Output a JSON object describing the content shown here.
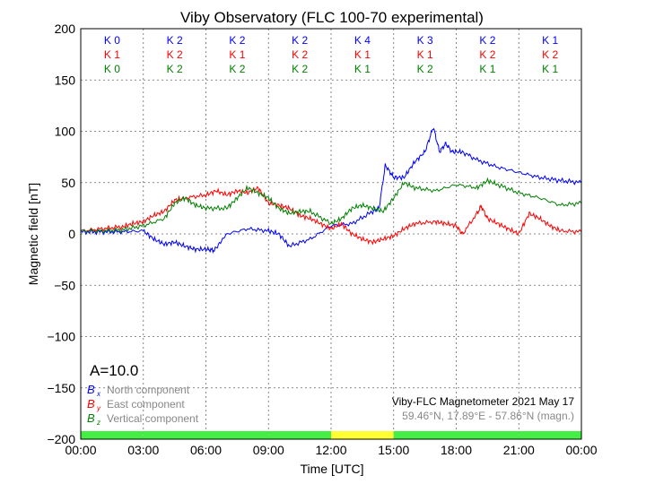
{
  "chart_data": {
    "type": "line",
    "title": "Viby Observatory (FLC 100-70 experimental)",
    "xlabel": "Time [UTC]",
    "ylabel": "Magnetic field [nT]",
    "xlim": [
      0,
      24
    ],
    "ylim": [
      -200,
      200
    ],
    "x_ticks": [
      "00:00",
      "03:00",
      "06:00",
      "09:00",
      "12:00",
      "15:00",
      "18:00",
      "21:00",
      "00:00"
    ],
    "y_ticks": [
      200,
      150,
      100,
      50,
      0,
      -50,
      -100,
      -150,
      -200
    ],
    "grid": true,
    "k_indices": {
      "north": [
        "K 0",
        "K 2",
        "K 2",
        "K 2",
        "K 4",
        "K 3",
        "K 2",
        "K 1"
      ],
      "east": [
        "K 1",
        "K 2",
        "K 1",
        "K 2",
        "K 1",
        "K 1",
        "K 2",
        "K 2"
      ],
      "vertical": [
        "K 0",
        "K 2",
        "K 2",
        "K 2",
        "K 1",
        "K 2",
        "K 1",
        "K 1"
      ]
    },
    "activity_bar": [
      "#44ee44",
      "#44ee44",
      "#44ee44",
      "#44ee44",
      "#ffff33",
      "#44ee44",
      "#44ee44",
      "#44ee44"
    ],
    "a_index": "A=10.0",
    "legend": [
      {
        "symbol": "B",
        "sub": "x",
        "label": "North component",
        "color": "#0000ff"
      },
      {
        "symbol": "B",
        "sub": "y",
        "label": "East component",
        "color": "#ff0000"
      },
      {
        "symbol": "B",
        "sub": "z",
        "label": "Vertical component",
        "color": "#008000"
      }
    ],
    "station": "Viby-FLC Magnetometer 2021 May 17",
    "coords": "59.46°N, 17.89°E - 57.86°N (magn.)",
    "series": [
      {
        "name": "North",
        "color": "#0000ff",
        "x": [
          0,
          1,
          2,
          3,
          3.5,
          4,
          4.5,
          5,
          5.5,
          6,
          6.4,
          7,
          8,
          9,
          9.5,
          10,
          11,
          12,
          13,
          14,
          14.3,
          14.6,
          15,
          15.5,
          16,
          16.5,
          16.9,
          17.2,
          17.5,
          17.8,
          18.3,
          19,
          20,
          21,
          22,
          23,
          24
        ],
        "y": [
          2,
          2,
          2,
          3,
          -5,
          -10,
          -8,
          -12,
          -15,
          -15,
          -16,
          0,
          5,
          3,
          0,
          -12,
          -5,
          8,
          10,
          22,
          25,
          67,
          55,
          55,
          70,
          80,
          104,
          80,
          88,
          80,
          80,
          72,
          65,
          60,
          55,
          52,
          50
        ]
      },
      {
        "name": "East",
        "color": "#ff0000",
        "x": [
          0,
          1,
          2,
          2.5,
          3,
          3.5,
          4,
          4.5,
          5,
          6,
          6.5,
          7,
          7.5,
          8,
          8.5,
          9,
          9.5,
          10,
          10.5,
          11,
          11.5,
          12,
          12.5,
          13,
          13.5,
          14,
          14.5,
          15,
          15.5,
          16,
          17,
          17.5,
          18,
          18.3,
          19,
          19.2,
          19.5,
          20,
          20.5,
          21,
          21.5,
          22,
          22.5,
          23,
          24
        ],
        "y": [
          3,
          5,
          7,
          10,
          12,
          18,
          22,
          33,
          35,
          38,
          42,
          38,
          42,
          40,
          45,
          30,
          28,
          25,
          18,
          15,
          10,
          5,
          10,
          0,
          -5,
          -8,
          -5,
          -2,
          5,
          10,
          12,
          10,
          8,
          0,
          20,
          27,
          15,
          10,
          5,
          0,
          20,
          15,
          8,
          3,
          2
        ]
      },
      {
        "name": "Vertical",
        "color": "#008000",
        "x": [
          0,
          1,
          2,
          3,
          4,
          4.5,
          5,
          5.5,
          6,
          7,
          7.5,
          8,
          8.5,
          9,
          9.5,
          10,
          10.5,
          11,
          12,
          12.5,
          13,
          13.5,
          14,
          14.5,
          15,
          15.5,
          16,
          17,
          18,
          19,
          19.5,
          20,
          21,
          22,
          23,
          24
        ],
        "y": [
          3,
          3,
          4,
          8,
          15,
          30,
          35,
          28,
          25,
          25,
          35,
          45,
          40,
          35,
          25,
          20,
          22,
          22,
          10,
          15,
          25,
          28,
          25,
          22,
          35,
          50,
          45,
          42,
          48,
          45,
          52,
          48,
          40,
          35,
          28,
          30
        ]
      }
    ]
  }
}
